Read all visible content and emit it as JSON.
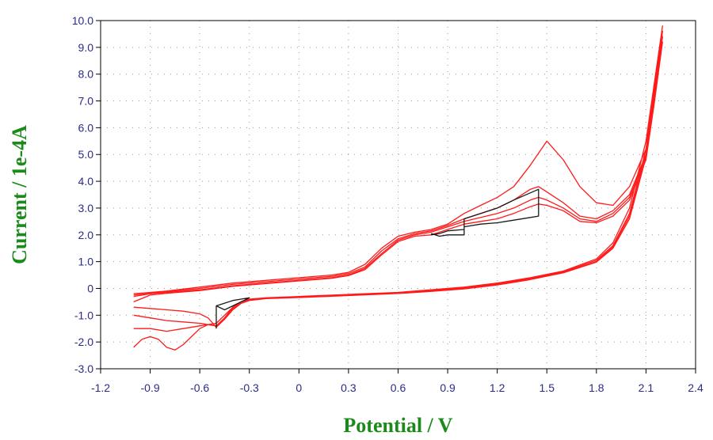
{
  "chart_data": {
    "type": "line",
    "title": "",
    "xlabel": "Potential / V",
    "ylabel": "Current / 1e-4A",
    "xlim": [
      -1.2,
      2.4
    ],
    "ylim": [
      -3.0,
      10.0
    ],
    "xticks": [
      "-1.2",
      "-0.9",
      "-0.6",
      "-0.3",
      "0",
      "0.3",
      "0.6",
      "0.9",
      "1.2",
      "1.5",
      "1.8",
      "2.1",
      "2.4"
    ],
    "yticks": [
      "-3.0",
      "-2.0",
      "-1.0",
      "0",
      "1.0",
      "2.0",
      "3.0",
      "4.0",
      "5.0",
      "6.0",
      "7.0",
      "8.0",
      "9.0",
      "10.0"
    ],
    "grid": "dotted",
    "colors": {
      "cycles": "#ff1a1a",
      "early_scan": "#1a1a1a",
      "axis_text": "#2b2b8a",
      "axis_title": "#1a8a1a"
    },
    "series": [
      {
        "color": "#ff1a1a",
        "x": [
          -1.0,
          -0.95,
          -0.9,
          -0.85,
          -0.8,
          -0.75,
          -0.7,
          -0.65,
          -0.6,
          -0.55,
          -0.5,
          -0.45,
          -0.4,
          -0.35,
          -0.3,
          -0.2,
          0.0,
          0.2,
          0.4,
          0.6,
          0.8,
          1.0,
          1.2,
          1.4,
          1.6,
          1.8,
          1.9,
          2.0,
          2.1,
          2.2,
          2.15,
          2.1,
          2.0,
          1.9,
          1.8,
          1.7,
          1.6,
          1.5,
          1.4,
          1.3,
          1.2,
          1.1,
          1.0,
          0.9,
          0.8,
          0.7,
          0.6,
          0.5,
          0.4,
          0.3,
          0.2,
          0.0,
          -0.2,
          -0.4,
          -0.6,
          -0.8,
          -0.9,
          -1.0
        ],
        "y": [
          -2.2,
          -1.9,
          -1.8,
          -1.9,
          -2.2,
          -2.3,
          -2.1,
          -1.8,
          -1.5,
          -1.35,
          -1.4,
          -1.1,
          -0.7,
          -0.5,
          -0.4,
          -0.35,
          -0.3,
          -0.25,
          -0.2,
          -0.15,
          -0.05,
          0.05,
          0.2,
          0.4,
          0.65,
          1.1,
          1.7,
          3.0,
          5.5,
          9.8,
          7.5,
          5.2,
          3.8,
          3.1,
          3.2,
          3.8,
          4.8,
          5.5,
          4.6,
          3.8,
          3.4,
          3.1,
          2.8,
          2.4,
          2.2,
          2.1,
          1.95,
          1.5,
          0.9,
          0.6,
          0.5,
          0.4,
          0.3,
          0.2,
          0.05,
          -0.1,
          -0.15,
          -0.2
        ]
      },
      {
        "color": "#ff1a1a",
        "x": [
          -1.0,
          -0.9,
          -0.8,
          -0.7,
          -0.6,
          -0.55,
          -0.5,
          -0.45,
          -0.4,
          -0.35,
          -0.3,
          -0.2,
          0.0,
          0.2,
          0.4,
          0.6,
          0.8,
          1.0,
          1.2,
          1.4,
          1.6,
          1.8,
          1.9,
          2.0,
          2.1,
          2.2,
          2.15,
          2.1,
          2.0,
          1.9,
          1.8,
          1.7,
          1.6,
          1.5,
          1.45,
          1.4,
          1.3,
          1.2,
          1.1,
          1.0,
          0.9,
          0.8,
          0.7,
          0.6,
          0.5,
          0.4,
          0.3,
          0.2,
          0.0,
          -0.2,
          -0.4,
          -0.6,
          -0.8,
          -0.9,
          -1.0
        ],
        "y": [
          -1.5,
          -1.5,
          -1.6,
          -1.5,
          -1.4,
          -1.35,
          -1.3,
          -1.0,
          -0.7,
          -0.5,
          -0.42,
          -0.36,
          -0.32,
          -0.27,
          -0.22,
          -0.17,
          -0.08,
          0.02,
          0.18,
          0.38,
          0.62,
          1.05,
          1.6,
          2.8,
          5.2,
          9.6,
          7.2,
          5.0,
          3.5,
          2.9,
          2.6,
          2.7,
          3.2,
          3.6,
          3.8,
          3.7,
          3.3,
          3.0,
          2.8,
          2.6,
          2.35,
          2.15,
          2.05,
          1.85,
          1.4,
          0.8,
          0.55,
          0.45,
          0.35,
          0.25,
          0.15,
          0.0,
          -0.12,
          -0.18,
          -0.25
        ]
      },
      {
        "color": "#ff1a1a",
        "x": [
          -1.0,
          -0.9,
          -0.8,
          -0.7,
          -0.6,
          -0.55,
          -0.5,
          -0.45,
          -0.4,
          -0.35,
          -0.3,
          -0.2,
          0.0,
          0.2,
          0.4,
          0.6,
          0.8,
          1.0,
          1.2,
          1.4,
          1.6,
          1.8,
          1.9,
          2.0,
          2.1,
          2.2,
          2.15,
          2.1,
          2.0,
          1.9,
          1.8,
          1.7,
          1.6,
          1.5,
          1.45,
          1.4,
          1.3,
          1.2,
          1.1,
          1.0,
          0.9,
          0.8,
          0.7,
          0.6,
          0.5,
          0.4,
          0.3,
          0.2,
          0.0,
          -0.2,
          -0.4,
          -0.6,
          -0.8,
          -0.9,
          -1.0
        ],
        "y": [
          -1.0,
          -1.1,
          -1.2,
          -1.25,
          -1.3,
          -1.35,
          -1.4,
          -1.1,
          -0.75,
          -0.55,
          -0.44,
          -0.37,
          -0.33,
          -0.28,
          -0.23,
          -0.18,
          -0.1,
          0.0,
          0.15,
          0.35,
          0.6,
          1.0,
          1.55,
          2.7,
          5.0,
          9.4,
          7.0,
          4.9,
          3.4,
          2.8,
          2.5,
          2.6,
          3.0,
          3.3,
          3.4,
          3.3,
          3.0,
          2.8,
          2.65,
          2.5,
          2.3,
          2.1,
          2.0,
          1.8,
          1.3,
          0.75,
          0.5,
          0.4,
          0.3,
          0.2,
          0.1,
          -0.05,
          -0.15,
          -0.2,
          -0.3
        ]
      },
      {
        "color": "#ff1a1a",
        "x": [
          -1.0,
          -0.9,
          -0.8,
          -0.7,
          -0.6,
          -0.55,
          -0.5,
          -0.45,
          -0.4,
          -0.35,
          -0.3,
          -0.2,
          0.0,
          0.2,
          0.4,
          0.6,
          0.8,
          1.0,
          1.2,
          1.4,
          1.6,
          1.8,
          1.9,
          2.0,
          2.1,
          2.2,
          2.15,
          2.1,
          2.0,
          1.9,
          1.8,
          1.7,
          1.6,
          1.5,
          1.45,
          1.4,
          1.3,
          1.2,
          1.1,
          1.0,
          0.9,
          0.8,
          0.7,
          0.6,
          0.5,
          0.4,
          0.3,
          0.2,
          0.0,
          -0.2,
          -0.4,
          -0.6,
          -0.8,
          -0.9,
          -1.0
        ],
        "y": [
          -0.7,
          -0.75,
          -0.8,
          -0.85,
          -0.95,
          -1.1,
          -1.45,
          -1.15,
          -0.8,
          -0.56,
          -0.45,
          -0.38,
          -0.34,
          -0.29,
          -0.24,
          -0.19,
          -0.11,
          -0.02,
          0.13,
          0.33,
          0.58,
          0.98,
          1.5,
          2.6,
          4.9,
          9.2,
          6.9,
          4.8,
          3.3,
          2.7,
          2.45,
          2.5,
          2.9,
          3.1,
          3.15,
          3.05,
          2.8,
          2.6,
          2.5,
          2.4,
          2.2,
          2.0,
          1.95,
          1.75,
          1.25,
          0.7,
          0.48,
          0.38,
          0.28,
          0.18,
          0.08,
          -0.08,
          -0.18,
          -0.25,
          -0.5
        ]
      },
      {
        "color": "#1a1a1a",
        "x": [
          -0.5,
          -0.5,
          -0.45,
          -0.4,
          -0.35,
          -0.3,
          -0.35,
          -0.4,
          -0.45,
          -0.5
        ],
        "y": [
          -1.5,
          -0.65,
          -0.55,
          -0.45,
          -0.4,
          -0.35,
          -0.5,
          -0.65,
          -0.8,
          -0.65
        ]
      },
      {
        "color": "#1a1a1a",
        "x": [
          0.8,
          0.85,
          0.9,
          1.0,
          1.0,
          1.1,
          1.2,
          1.3,
          1.45,
          1.45,
          1.4,
          1.3,
          1.2,
          1.1,
          1.0,
          1.0,
          0.9,
          0.85,
          0.8
        ],
        "y": [
          2.0,
          2.05,
          2.15,
          2.2,
          2.6,
          2.8,
          3.0,
          3.3,
          3.7,
          2.7,
          2.65,
          2.55,
          2.45,
          2.4,
          2.3,
          2.0,
          2.0,
          1.95,
          2.05
        ]
      }
    ]
  }
}
